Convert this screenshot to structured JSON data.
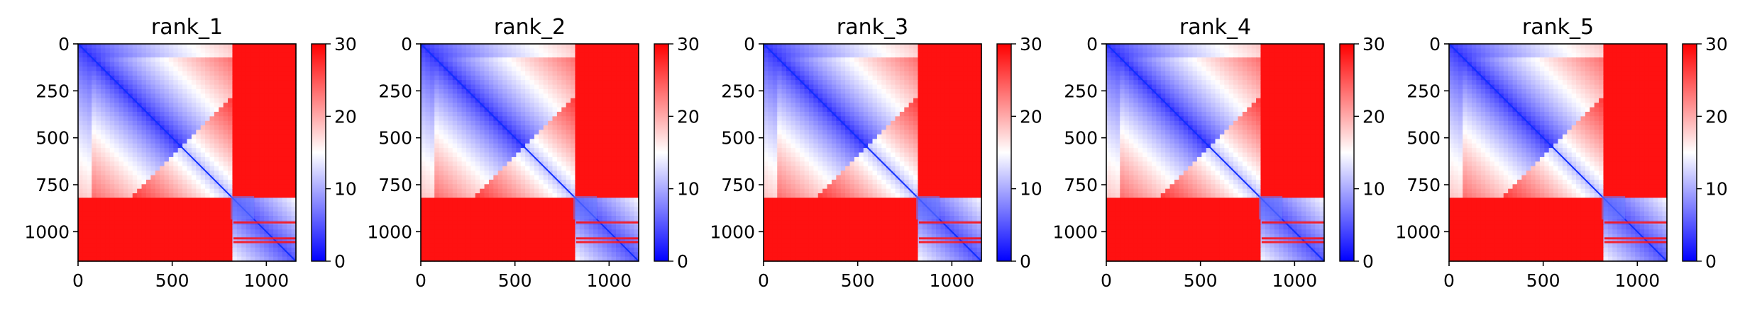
{
  "chart_data": [
    {
      "type": "heatmap",
      "title": "rank_1",
      "x_ticks": [
        0,
        500,
        1000
      ],
      "y_ticks": [
        0,
        250,
        500,
        750,
        1000
      ],
      "xlim": [
        0,
        1157
      ],
      "ylim": [
        1157,
        0
      ],
      "colorbar_ticks": [
        0,
        10,
        20,
        30
      ],
      "vmin": 0,
      "vmax": 30,
      "colormap": "bwr",
      "block_boundaries": [
        810,
        935
      ],
      "stripe_rows": [
        945,
        1030,
        1050
      ]
    },
    {
      "type": "heatmap",
      "title": "rank_2",
      "x_ticks": [
        0,
        500,
        1000
      ],
      "y_ticks": [
        0,
        250,
        500,
        750,
        1000
      ],
      "xlim": [
        0,
        1157
      ],
      "ylim": [
        1157,
        0
      ],
      "colorbar_ticks": [
        0,
        10,
        20,
        30
      ],
      "vmin": 0,
      "vmax": 30,
      "colormap": "bwr",
      "block_boundaries": [
        810,
        935
      ],
      "stripe_rows": [
        945,
        1030,
        1050
      ]
    },
    {
      "type": "heatmap",
      "title": "rank_3",
      "x_ticks": [
        0,
        500,
        1000
      ],
      "y_ticks": [
        0,
        250,
        500,
        750,
        1000
      ],
      "xlim": [
        0,
        1157
      ],
      "ylim": [
        1157,
        0
      ],
      "colorbar_ticks": [
        0,
        10,
        20,
        30
      ],
      "vmin": 0,
      "vmax": 30,
      "colormap": "bwr",
      "block_boundaries": [
        810,
        935
      ],
      "stripe_rows": [
        945,
        1030,
        1050
      ]
    },
    {
      "type": "heatmap",
      "title": "rank_4",
      "x_ticks": [
        0,
        500,
        1000
      ],
      "y_ticks": [
        0,
        250,
        500,
        750,
        1000
      ],
      "xlim": [
        0,
        1157
      ],
      "ylim": [
        1157,
        0
      ],
      "colorbar_ticks": [
        0,
        10,
        20,
        30
      ],
      "vmin": 0,
      "vmax": 30,
      "colormap": "bwr",
      "block_boundaries": [
        810,
        935
      ],
      "stripe_rows": [
        945,
        1030,
        1050
      ]
    },
    {
      "type": "heatmap",
      "title": "rank_5",
      "x_ticks": [
        0,
        500,
        1000
      ],
      "y_ticks": [
        0,
        250,
        500,
        750,
        1000
      ],
      "xlim": [
        0,
        1157
      ],
      "ylim": [
        1157,
        0
      ],
      "colorbar_ticks": [
        0,
        10,
        20,
        30
      ],
      "vmin": 0,
      "vmax": 30,
      "colormap": "bwr",
      "block_boundaries": [
        810,
        935
      ],
      "stripe_rows": [
        945,
        1030,
        1050
      ]
    }
  ],
  "colors": {
    "low": "#0000ff",
    "mid": "#ffffff",
    "high": "#ff0000",
    "axis": "#000000"
  }
}
